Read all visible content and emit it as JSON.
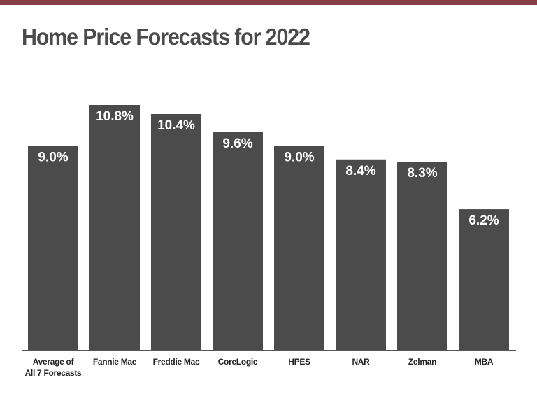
{
  "colors": {
    "top_bar": "#853e46",
    "bar": "#4b4b4b",
    "title": "#4a4a4a"
  },
  "chart_data": {
    "type": "bar",
    "title": "Home Price Forecasts for 2022",
    "categories": [
      [
        "Average of",
        "All 7 Forecasts"
      ],
      [
        "Fannie Mae"
      ],
      [
        "Freddie Mac"
      ],
      [
        "CoreLogic"
      ],
      [
        "HPES"
      ],
      [
        "NAR"
      ],
      [
        "Zelman"
      ],
      [
        "MBA"
      ]
    ],
    "values": [
      9.0,
      10.8,
      10.4,
      9.6,
      9.0,
      8.4,
      8.3,
      6.2
    ],
    "data_labels": [
      "9.0%",
      "10.8%",
      "10.4%",
      "9.6%",
      "9.0%",
      "8.4%",
      "8.3%",
      "6.2%"
    ],
    "ylim": [
      0,
      10.8
    ],
    "grid": false,
    "legend": "none"
  }
}
